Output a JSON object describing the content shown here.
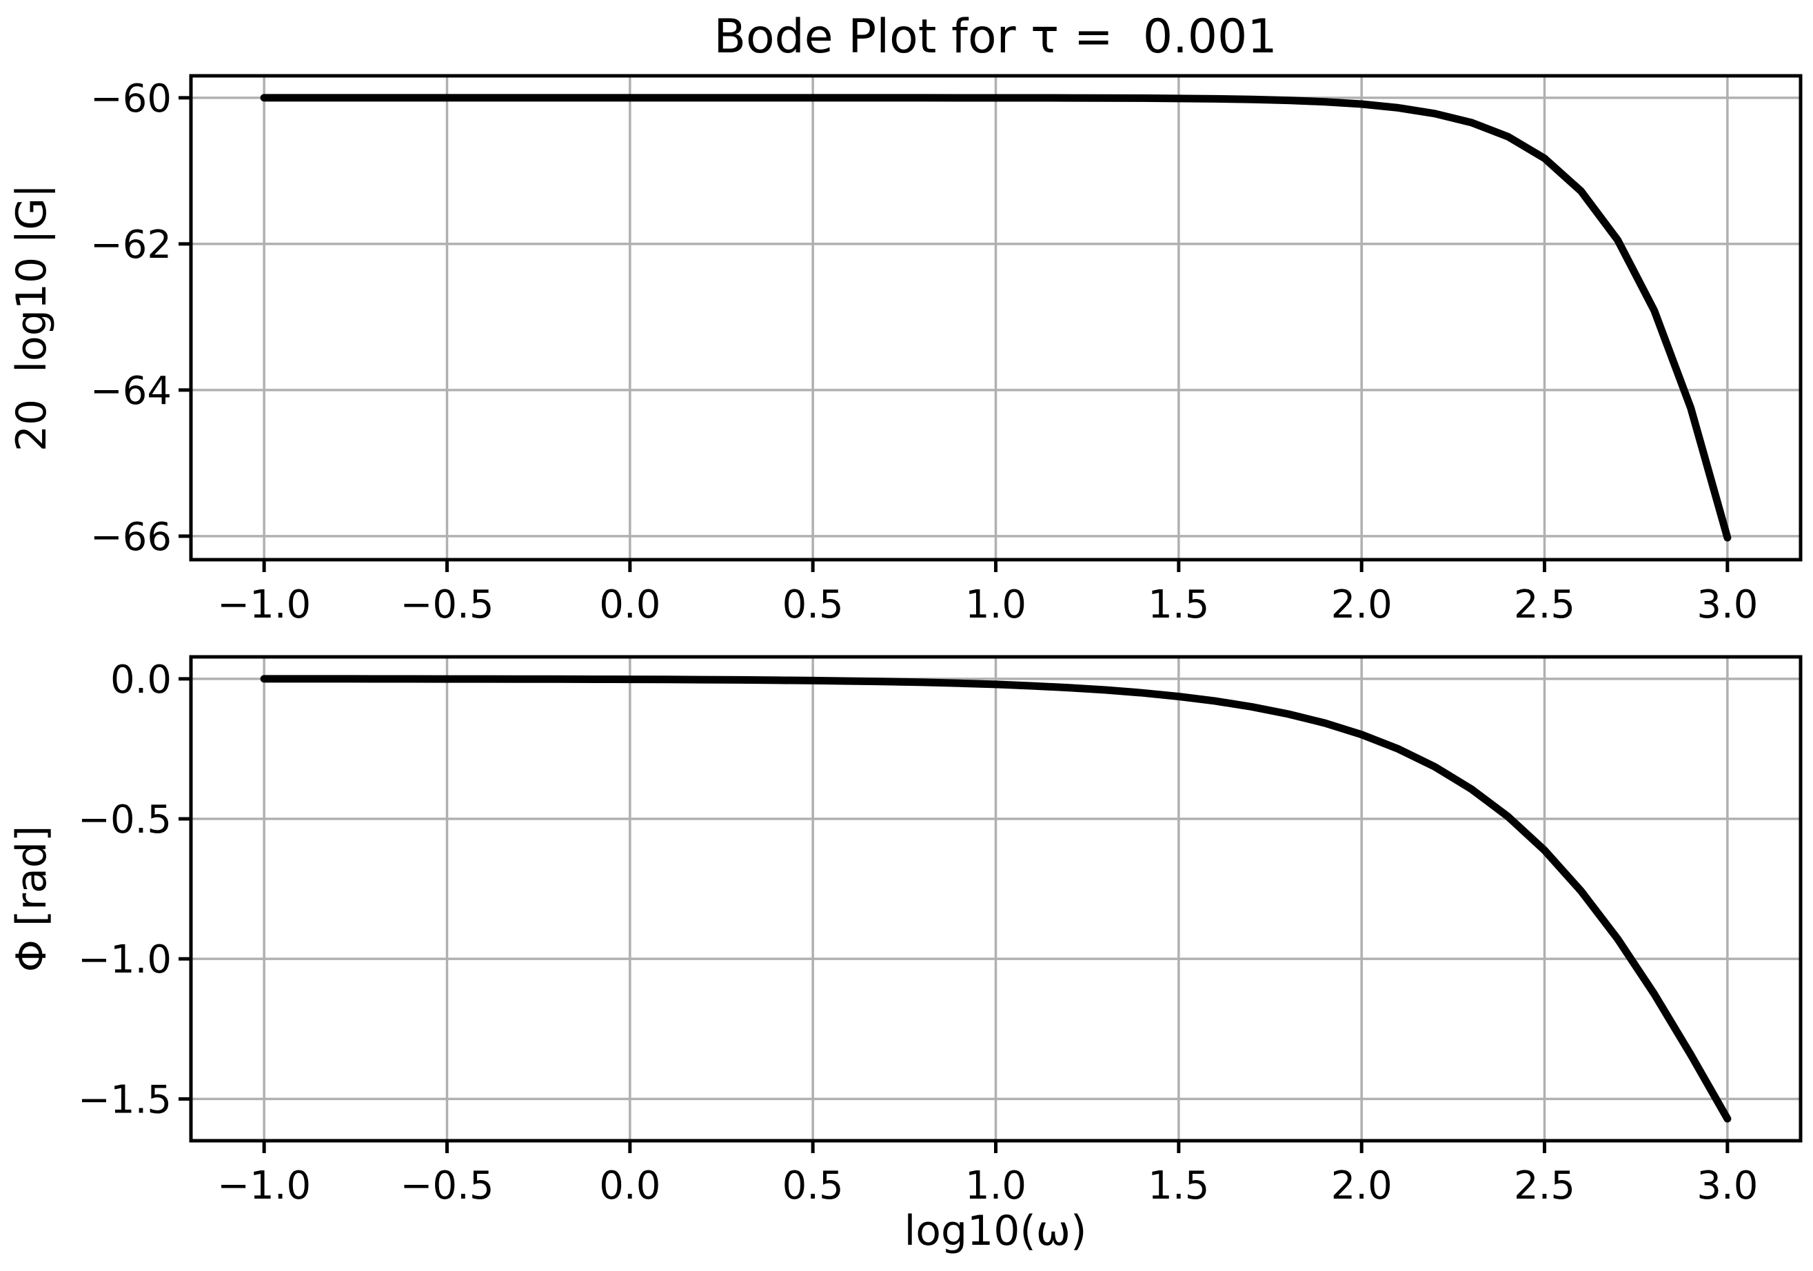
{
  "figure": {
    "background": "#ffffff",
    "spine_color": "#000000",
    "tick_color": "#000000"
  },
  "chart_data": [
    {
      "type": "line",
      "name": "magnitude",
      "title": "Bode Plot for τ =  0.001",
      "ylabel": "20  log10 |G|",
      "xlabel": "",
      "legend": null,
      "grid": true,
      "grid_color": "#b0b0b0",
      "line_color": "#000000",
      "xlim": [
        -1.2,
        3.2
      ],
      "ylim": [
        -66.322,
        -59.699
      ],
      "x_ticks": [
        -1.0,
        -0.5,
        0.0,
        0.5,
        1.0,
        1.5,
        2.0,
        2.5,
        3.0
      ],
      "x_tick_labels": [
        "−1.0",
        "−0.5",
        "0.0",
        "0.5",
        "1.0",
        "1.5",
        "2.0",
        "2.5",
        "3.0"
      ],
      "y_ticks": [
        -60,
        -62,
        -64,
        -66
      ],
      "y_tick_labels": [
        "−60",
        "−62",
        "−64",
        "−66"
      ],
      "x": [
        -1.0,
        -0.9,
        -0.8,
        -0.7,
        -0.6,
        -0.5,
        -0.4,
        -0.3,
        -0.2,
        -0.1,
        0.0,
        0.1,
        0.2,
        0.3,
        0.4,
        0.5,
        0.6,
        0.7,
        0.8,
        0.9,
        1.0,
        1.1,
        1.2,
        1.3,
        1.4,
        1.5,
        1.6,
        1.7,
        1.8,
        1.9,
        2.0,
        2.1,
        2.2,
        2.3,
        2.4,
        2.5,
        2.6,
        2.7,
        2.8,
        2.9,
        3.0
      ],
      "y": [
        -60.0,
        -60.0,
        -60.0,
        -60.0,
        -60.0,
        -60.0,
        -60.0,
        -60.0,
        -60.0,
        -60.0,
        -60.0,
        -60.0,
        -60.0,
        -60.0,
        -60.0,
        -60.0,
        -60.0,
        -60.0,
        -60.0,
        -60.001,
        -60.001,
        -60.001,
        -60.002,
        -60.003,
        -60.005,
        -60.009,
        -60.014,
        -60.022,
        -60.035,
        -60.055,
        -60.086,
        -60.137,
        -60.216,
        -60.339,
        -60.531,
        -60.828,
        -61.278,
        -61.947,
        -62.911,
        -64.248,
        -66.021
      ]
    },
    {
      "type": "line",
      "name": "phase",
      "title": "",
      "ylabel": "Φ [rad]",
      "xlabel": "log10(ω)",
      "legend": null,
      "grid": true,
      "grid_color": "#b0b0b0",
      "line_color": "#000000",
      "xlim": [
        -1.2,
        3.2
      ],
      "ylim": [
        -1.6492,
        0.0783
      ],
      "x_ticks": [
        -1.0,
        -0.5,
        0.0,
        0.5,
        1.0,
        1.5,
        2.0,
        2.5,
        3.0
      ],
      "x_tick_labels": [
        "−1.0",
        "−0.5",
        "0.0",
        "0.5",
        "1.0",
        "1.5",
        "2.0",
        "2.5",
        "3.0"
      ],
      "y_ticks": [
        0.0,
        -0.5,
        -1.0,
        -1.5
      ],
      "y_tick_labels": [
        "0.0",
        "−0.5",
        "−1.0",
        "−1.5"
      ],
      "x": [
        -1.0,
        -0.9,
        -0.8,
        -0.7,
        -0.6,
        -0.5,
        -0.4,
        -0.3,
        -0.2,
        -0.1,
        0.0,
        0.1,
        0.2,
        0.3,
        0.4,
        0.5,
        0.6,
        0.7,
        0.8,
        0.9,
        1.0,
        1.1,
        1.2,
        1.3,
        1.4,
        1.5,
        1.6,
        1.7,
        1.8,
        1.9,
        2.0,
        2.1,
        2.2,
        2.3,
        2.4,
        2.5,
        2.6,
        2.7,
        2.8,
        2.9,
        3.0
      ],
      "y": [
        -0.0002,
        -0.0003,
        -0.0003,
        -0.0004,
        -0.0005,
        -0.0006,
        -0.0008,
        -0.001,
        -0.0013,
        -0.0016,
        -0.002,
        -0.0025,
        -0.0032,
        -0.004,
        -0.005,
        -0.0063,
        -0.008,
        -0.01,
        -0.0126,
        -0.0159,
        -0.02,
        -0.0252,
        -0.0317,
        -0.0399,
        -0.0502,
        -0.0632,
        -0.0795,
        -0.1001,
        -0.1259,
        -0.1583,
        -0.1993,
        -0.2503,
        -0.314,
        -0.3936,
        -0.4919,
        -0.6121,
        -0.758,
        -0.929,
        -1.1254,
        -1.3423,
        -1.5708
      ]
    }
  ]
}
